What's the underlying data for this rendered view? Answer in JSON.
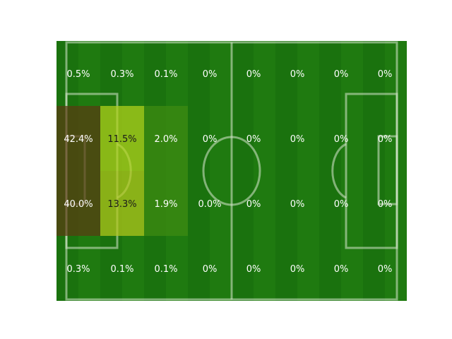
{
  "chart_data": {
    "type": "heatmap",
    "title": "",
    "xlabel": "",
    "ylabel": "",
    "rows": 4,
    "cols": 8,
    "cell_labels": [
      [
        "0.5%",
        "0.3%",
        "0.1%",
        "0%",
        "0%",
        "0%",
        "0%",
        "0%"
      ],
      [
        "42.4%",
        "11.5%",
        "2.0%",
        "0%",
        "0%",
        "0%",
        "0%",
        "0%"
      ],
      [
        "40.0%",
        "13.3%",
        "1.9%",
        "0.0%",
        "0%",
        "0%",
        "0%",
        "0%"
      ],
      [
        "0.3%",
        "0.1%",
        "0.1%",
        "0%",
        "0%",
        "0%",
        "0%",
        "0%"
      ]
    ],
    "values": [
      [
        0.5,
        0.3,
        0.1,
        0,
        0,
        0,
        0,
        0
      ],
      [
        42.4,
        11.5,
        2.0,
        0,
        0,
        0,
        0,
        0
      ],
      [
        40.0,
        13.3,
        1.9,
        0.0,
        0,
        0,
        0,
        0
      ],
      [
        0.3,
        0.1,
        0.1,
        0,
        0,
        0,
        0,
        0
      ]
    ],
    "cell_fills": [
      [
        null,
        null,
        null,
        null,
        null,
        null,
        null,
        null
      ],
      [
        "#5a3a12",
        "#b4d21c",
        "#3f8a12",
        null,
        null,
        null,
        null,
        null
      ],
      [
        "#5a3a12",
        "#b4c81c",
        "#3f8a12",
        null,
        null,
        null,
        null,
        null
      ],
      [
        null,
        null,
        null,
        null,
        null,
        null,
        null,
        null
      ]
    ],
    "cell_fill_opacity": 0.72,
    "label_colors": [
      [
        "#ffffff",
        "#ffffff",
        "#ffffff",
        "#ffffff",
        "#ffffff",
        "#ffffff",
        "#ffffff",
        "#ffffff"
      ],
      [
        "#ffffff",
        "#1a1a1a",
        "#ffffff",
        "#ffffff",
        "#ffffff",
        "#ffffff",
        "#ffffff",
        "#ffffff"
      ],
      [
        "#ffffff",
        "#1a1a1a",
        "#ffffff",
        "#ffffff",
        "#ffffff",
        "#ffffff",
        "#ffffff",
        "#ffffff"
      ],
      [
        "#ffffff",
        "#ffffff",
        "#ffffff",
        "#ffffff",
        "#ffffff",
        "#ffffff",
        "#ffffff",
        "#ffffff"
      ]
    ],
    "background": "football-pitch",
    "pitch_color": "#1f7a10",
    "pitch_stripe_color": "#166b0c",
    "line_color": "#d9e8cf"
  }
}
